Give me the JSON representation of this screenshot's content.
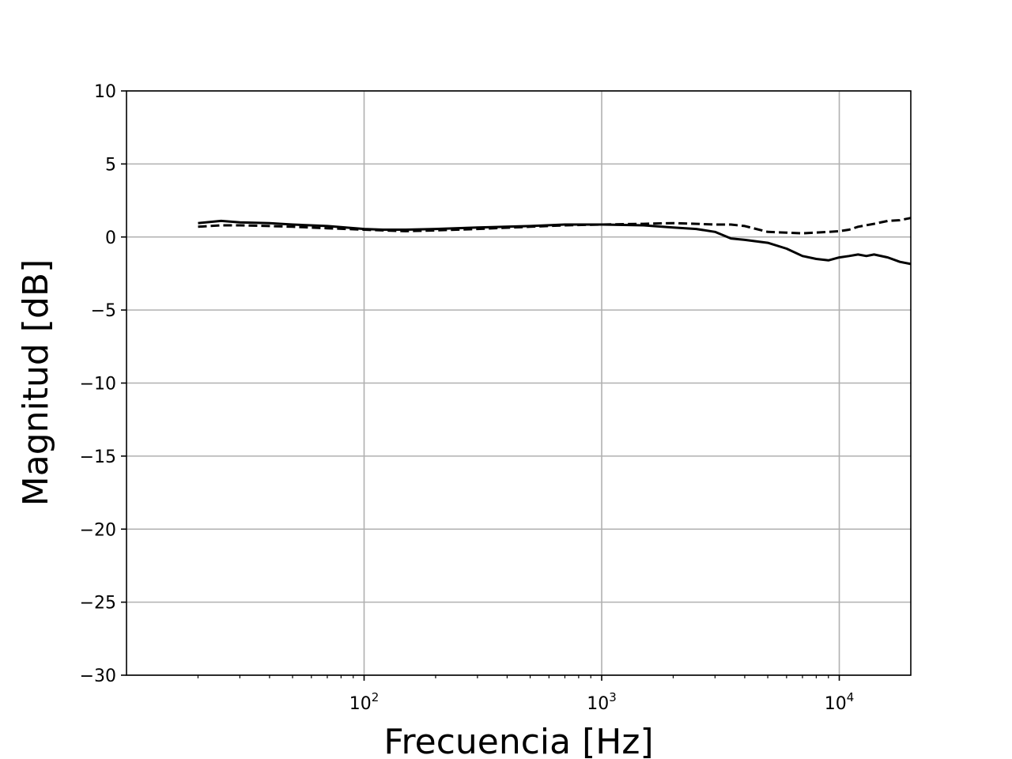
{
  "chart_data": {
    "type": "line",
    "title": "",
    "xlabel": "Frecuencia [Hz]",
    "ylabel": "Magnitud [dB]",
    "xscale": "log",
    "xlim": [
      10,
      20000
    ],
    "ylim": [
      -30,
      10
    ],
    "grid": true,
    "legend": "none",
    "x_ticks": [
      {
        "value": 100,
        "base": "10",
        "exp": "2"
      },
      {
        "value": 1000,
        "base": "10",
        "exp": "3"
      },
      {
        "value": 10000,
        "base": "10",
        "exp": "4"
      }
    ],
    "y_ticks": [
      {
        "value": 10,
        "label": "10"
      },
      {
        "value": 5,
        "label": "5"
      },
      {
        "value": 0,
        "label": "0"
      },
      {
        "value": -5,
        "label": "−5"
      },
      {
        "value": -10,
        "label": "−10"
      },
      {
        "value": -15,
        "label": "−15"
      },
      {
        "value": -20,
        "label": "−20"
      },
      {
        "value": -25,
        "label": "−25"
      },
      {
        "value": -30,
        "label": "−30"
      }
    ],
    "colors": {
      "line": "#000000",
      "grid": "#b0b0b0",
      "axes": "#000000"
    },
    "series": [
      {
        "style": "solid",
        "x": [
          20,
          25,
          30,
          40,
          50,
          70,
          100,
          120,
          150,
          200,
          300,
          500,
          700,
          1000,
          1500,
          2000,
          2500,
          3000,
          3500,
          4000,
          5000,
          6000,
          7000,
          8000,
          9000,
          10000,
          11000,
          12000,
          13000,
          14000,
          16000,
          18000,
          20000
        ],
        "y": [
          0.95,
          1.1,
          1.0,
          0.95,
          0.85,
          0.75,
          0.55,
          0.5,
          0.5,
          0.55,
          0.65,
          0.75,
          0.85,
          0.85,
          0.8,
          0.65,
          0.55,
          0.35,
          -0.1,
          -0.2,
          -0.4,
          -0.8,
          -1.3,
          -1.5,
          -1.6,
          -1.4,
          -1.3,
          -1.2,
          -1.3,
          -1.2,
          -1.4,
          -1.7,
          -1.85
        ]
      },
      {
        "style": "dashed",
        "x": [
          20,
          25,
          30,
          40,
          50,
          70,
          100,
          120,
          150,
          200,
          300,
          500,
          700,
          1000,
          1500,
          2000,
          2500,
          3000,
          3500,
          4000,
          5000,
          6000,
          7000,
          8000,
          9000,
          10000,
          11000,
          12000,
          14000,
          16000,
          18000,
          20000
        ],
        "y": [
          0.7,
          0.8,
          0.8,
          0.75,
          0.7,
          0.6,
          0.5,
          0.45,
          0.4,
          0.45,
          0.55,
          0.7,
          0.8,
          0.85,
          0.9,
          0.95,
          0.9,
          0.85,
          0.85,
          0.75,
          0.35,
          0.3,
          0.25,
          0.3,
          0.35,
          0.4,
          0.5,
          0.7,
          0.9,
          1.1,
          1.15,
          1.3
        ]
      }
    ]
  }
}
